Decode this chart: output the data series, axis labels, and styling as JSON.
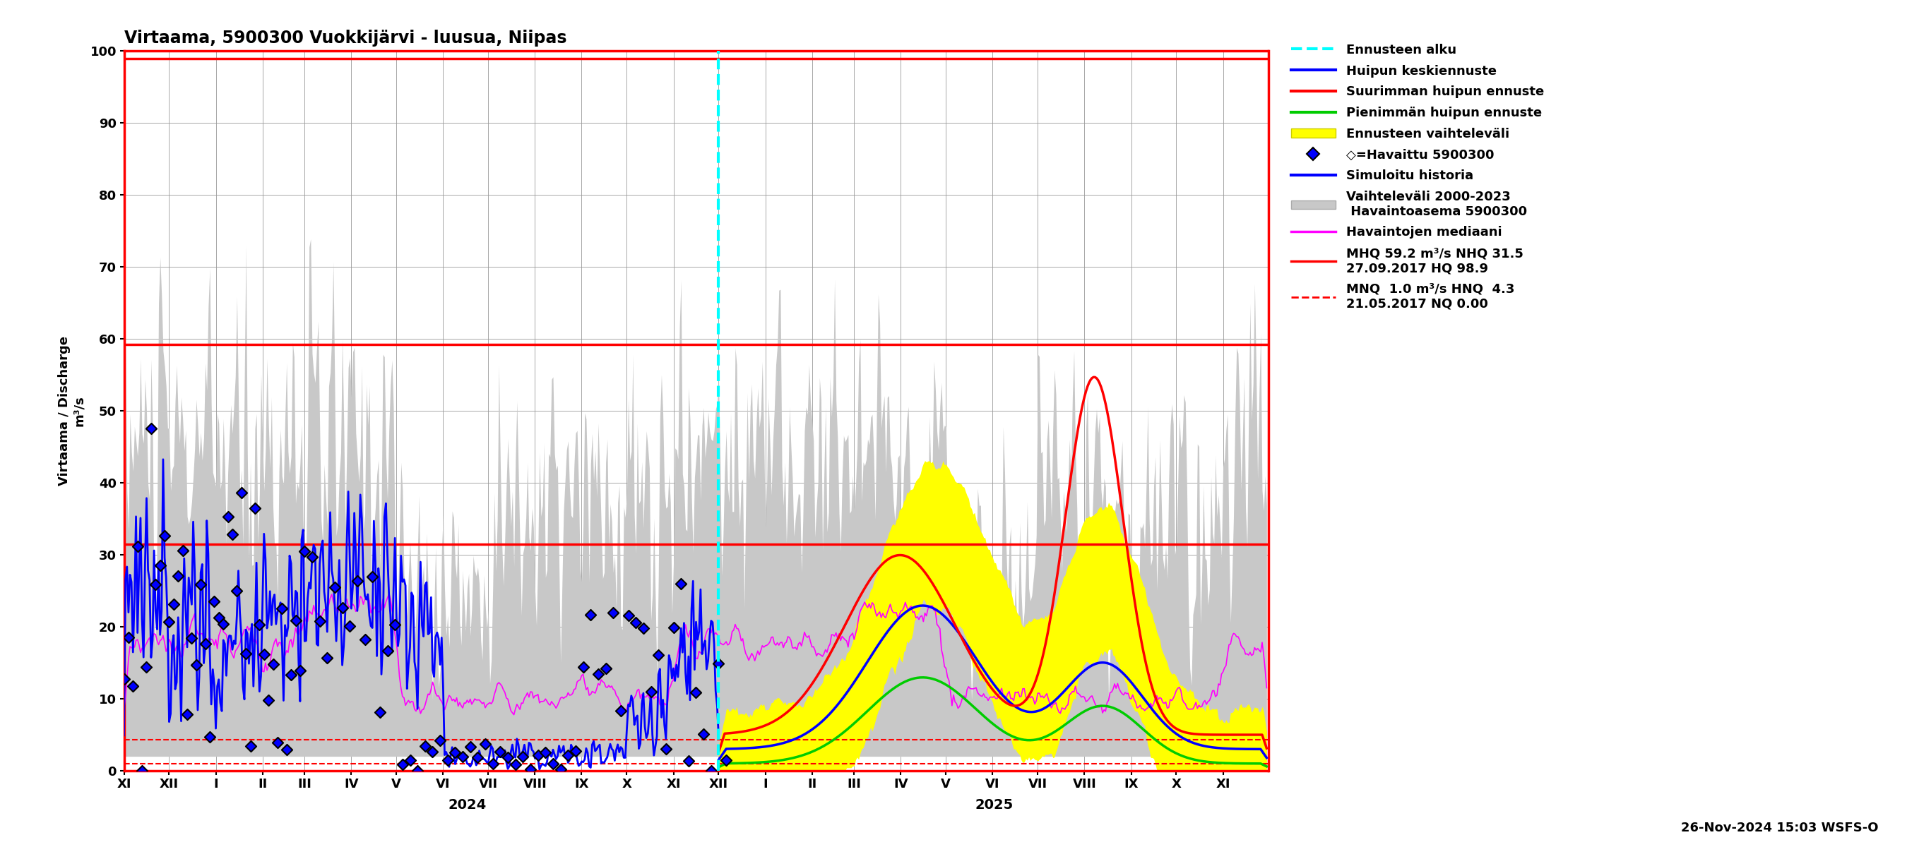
{
  "title": "Virtaama, 5900300 Vuokkijärvi - luusua, Niipas",
  "ylabel_left": "Virtaama / Discharge",
  "ylabel_right": "m³/s",
  "ylim": [
    0,
    100
  ],
  "yticks": [
    0,
    10,
    20,
    30,
    40,
    50,
    60,
    70,
    80,
    90,
    100
  ],
  "hline_red_solid_1": 98.9,
  "hline_red_solid_2": 59.2,
  "hline_red_solid_3": 31.5,
  "hline_red_dashed_1": 4.3,
  "hline_red_dashed_2": 1.0,
  "timestamp_label": "26-Nov-2024 15:03 WSFS-O",
  "colors": {
    "cyan_dashed": "#00ffff",
    "blue_line": "#0000ff",
    "red_line": "#ff0000",
    "green_line": "#00cc00",
    "yellow_fill": "#ffff00",
    "magenta_line": "#ff00ff",
    "gray_fill": "#c8c8c8",
    "black": "#000000",
    "red_dashed": "#ff0000",
    "white": "#ffffff"
  },
  "month_names": [
    "XI",
    "XII",
    "I",
    "II",
    "III",
    "IV",
    "V",
    "VI",
    "VII",
    "VIII",
    "IX",
    "X",
    "XI",
    "XII",
    "I",
    "II",
    "III",
    "IV",
    "V",
    "VI",
    "VII",
    "VIII",
    "IX",
    "X",
    "XI"
  ],
  "month_days": [
    30,
    31,
    31,
    28,
    31,
    30,
    31,
    30,
    31,
    31,
    30,
    31,
    30,
    31,
    31,
    28,
    31,
    30,
    31,
    30,
    31,
    31,
    30,
    31,
    30
  ]
}
